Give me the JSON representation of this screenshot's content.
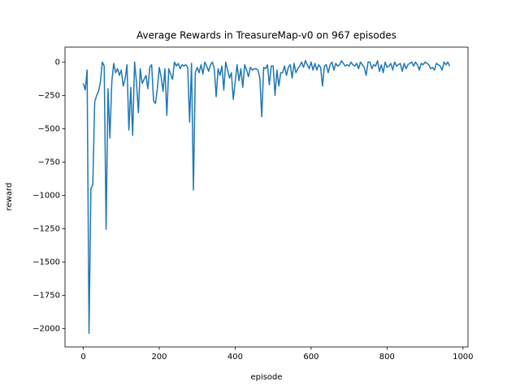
{
  "chart_data": {
    "type": "line",
    "title": "Average Rewards in TreasureMap-v0 on 967 episodes",
    "x_label": "episode",
    "y_label": "reward",
    "x": [
      0,
      5,
      10,
      15,
      20,
      25,
      30,
      35,
      40,
      45,
      50,
      55,
      60,
      65,
      70,
      75,
      80,
      85,
      90,
      95,
      100,
      105,
      110,
      115,
      120,
      125,
      130,
      135,
      140,
      145,
      150,
      155,
      160,
      165,
      170,
      175,
      180,
      185,
      190,
      195,
      200,
      205,
      210,
      215,
      220,
      225,
      230,
      235,
      240,
      245,
      250,
      255,
      260,
      265,
      270,
      275,
      280,
      285,
      290,
      295,
      300,
      305,
      310,
      315,
      320,
      325,
      330,
      335,
      340,
      345,
      350,
      355,
      360,
      365,
      370,
      375,
      380,
      385,
      390,
      395,
      400,
      405,
      410,
      415,
      420,
      425,
      430,
      435,
      440,
      445,
      450,
      455,
      460,
      465,
      470,
      475,
      480,
      485,
      490,
      495,
      500,
      505,
      510,
      515,
      520,
      525,
      530,
      535,
      540,
      545,
      550,
      555,
      560,
      565,
      570,
      575,
      580,
      585,
      590,
      595,
      600,
      605,
      610,
      615,
      620,
      625,
      630,
      635,
      640,
      645,
      650,
      655,
      660,
      665,
      670,
      675,
      680,
      685,
      690,
      695,
      700,
      705,
      710,
      715,
      720,
      725,
      730,
      735,
      740,
      745,
      750,
      755,
      760,
      765,
      770,
      775,
      780,
      785,
      790,
      795,
      800,
      805,
      810,
      815,
      820,
      825,
      830,
      835,
      840,
      845,
      850,
      855,
      860,
      865,
      870,
      875,
      880,
      885,
      890,
      895,
      900,
      905,
      910,
      915,
      920,
      925,
      930,
      935,
      940,
      945,
      950,
      955,
      960,
      965
    ],
    "series": [
      {
        "name": "reward",
        "color": "#1f77b4",
        "values": [
          -160,
          -210,
          -60,
          -2035,
          -950,
          -920,
          -300,
          -250,
          -220,
          -150,
          0,
          -30,
          -1255,
          -200,
          -570,
          -150,
          -10,
          -80,
          -50,
          -100,
          -60,
          -180,
          -130,
          -20,
          -510,
          -190,
          -550,
          0,
          -150,
          -380,
          -50,
          -160,
          -130,
          -100,
          -200,
          -40,
          -20,
          -290,
          -310,
          -200,
          -40,
          -110,
          -220,
          -50,
          -400,
          -50,
          -90,
          -130,
          0,
          -30,
          -10,
          -50,
          -20,
          -30,
          -20,
          -40,
          -450,
          -10,
          -960,
          -80,
          -40,
          -80,
          -20,
          -90,
          0,
          -30,
          -70,
          -20,
          0,
          -50,
          -260,
          -50,
          -100,
          -30,
          -210,
          0,
          -60,
          -120,
          -80,
          -280,
          -150,
          -20,
          -140,
          -50,
          -190,
          -20,
          -60,
          -110,
          -40,
          -60,
          -50,
          -50,
          -60,
          -120,
          -410,
          -40,
          -50,
          -20,
          -170,
          -30,
          -30,
          -250,
          -60,
          -180,
          -80,
          -80,
          -30,
          -100,
          -40,
          -20,
          -120,
          -10,
          -80,
          -50,
          -30,
          0,
          -40,
          10,
          -20,
          -50,
          0,
          -60,
          -10,
          -60,
          -20,
          -40,
          -180,
          -30,
          -20,
          -80,
          -20,
          0,
          -60,
          -10,
          -30,
          -20,
          10,
          -10,
          -30,
          -20,
          -30,
          0,
          -20,
          -30,
          -10,
          -50,
          0,
          -20,
          -40,
          -100,
          0,
          0,
          -50,
          -20,
          -30,
          10,
          -70,
          -20,
          -80,
          0,
          -40,
          -30,
          -10,
          -60,
          0,
          -30,
          -20,
          -10,
          -70,
          -10,
          -50,
          -20,
          -10,
          0,
          -30,
          0,
          -20,
          -60,
          -10,
          -20,
          0,
          -10,
          -20,
          -50,
          -40,
          -60,
          -10,
          -20,
          -30,
          -60,
          0,
          -20,
          0,
          -30
        ]
      }
    ],
    "xlim": [
      -48.25,
      1013.25
    ],
    "ylim": [
      -2137,
      112
    ],
    "xticks": [
      0,
      200,
      400,
      600,
      800,
      1000
    ],
    "yticks": [
      {
        "value": -2000,
        "label": "−2000"
      },
      {
        "value": -1750,
        "label": "−1750"
      },
      {
        "value": -1500,
        "label": "−1500"
      },
      {
        "value": -1250,
        "label": "−1250"
      },
      {
        "value": -1000,
        "label": "−1000"
      },
      {
        "value": -750,
        "label": "−750"
      },
      {
        "value": -500,
        "label": "−500"
      },
      {
        "value": -250,
        "label": "−250"
      },
      0
    ],
    "grid": false
  }
}
